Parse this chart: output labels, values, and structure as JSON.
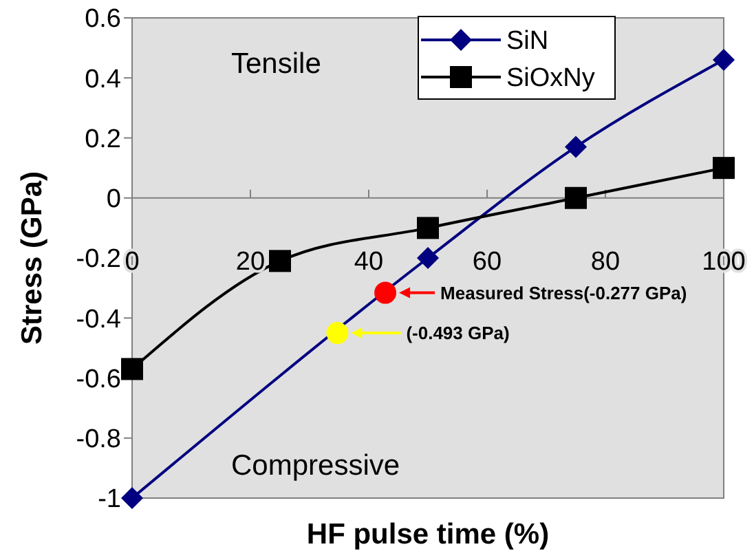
{
  "chart_data": {
    "type": "line",
    "xlabel": "HF pulse time (%)",
    "ylabel": "Stress (GPa)",
    "xlim": [
      0,
      100
    ],
    "xticks": [
      0,
      20,
      40,
      60,
      80,
      100
    ],
    "ylim": [
      -1,
      0.6
    ],
    "yticks": [
      -1,
      -0.8,
      -0.6,
      -0.4,
      -0.2,
      0,
      0.2,
      0.4,
      0.6
    ],
    "grid": false,
    "legend": "top right",
    "series": [
      {
        "name": "SiN",
        "color": "#000080",
        "marker": "diamond",
        "x": [
          0,
          50,
          75,
          100
        ],
        "values": [
          -1,
          -0.2,
          0.17,
          0.46
        ]
      },
      {
        "name": "SiOxNy",
        "color": "#000000",
        "marker": "square",
        "x": [
          0,
          25,
          50,
          75,
          100
        ],
        "values": [
          -0.57,
          -0.21,
          -0.1,
          0,
          0.1
        ]
      },
      {
        "type": "scatter",
        "color": "#ff0000",
        "marker": "circle",
        "x": [
          42.8
        ],
        "values": [
          -0.316
        ]
      },
      {
        "type": "scatter",
        "color": "#ffff00",
        "marker": "circle",
        "x": [
          34.7
        ],
        "values": [
          -0.45
        ]
      }
    ],
    "annotations": [
      "Tensile",
      "Compressive",
      "Measured Stress(-0.277 GPa)",
      "(-0.493 GPa)"
    ]
  }
}
